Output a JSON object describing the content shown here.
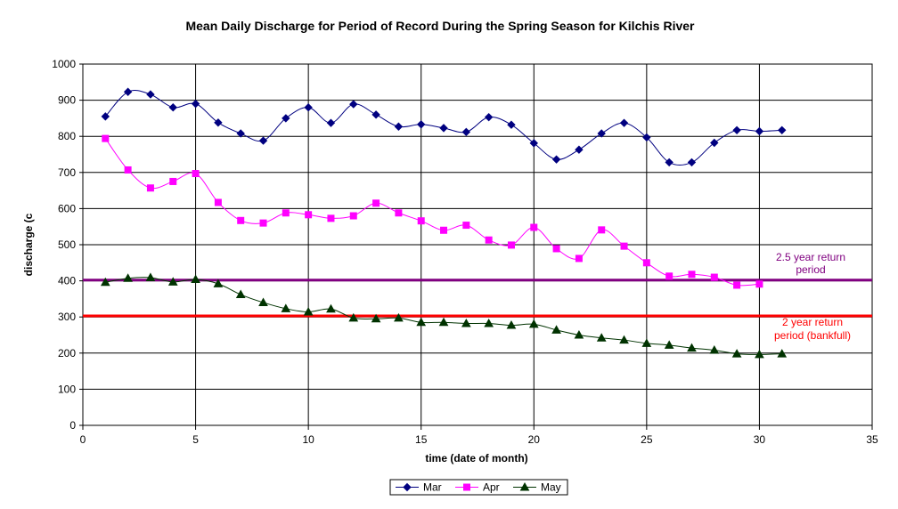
{
  "chart_data": {
    "type": "line",
    "title": "Mean Daily Discharge for Period of Record During the Spring Season for Kilchis River",
    "xlabel": "time (date of month)",
    "ylabel": "discharge (c",
    "xlim": [
      0,
      35
    ],
    "ylim": [
      0,
      1000
    ],
    "xticks": [
      "0",
      "5",
      "10",
      "15",
      "20",
      "25",
      "30",
      "35"
    ],
    "yticks": [
      "0",
      "100",
      "200",
      "300",
      "400",
      "500",
      "600",
      "700",
      "800",
      "900",
      "1000"
    ],
    "grid": true,
    "legend_position": "bottom",
    "series": [
      {
        "name": "Mar",
        "color": "#000080",
        "marker": "diamond",
        "x": [
          1,
          2,
          3,
          4,
          5,
          6,
          7,
          8,
          9,
          10,
          11,
          12,
          13,
          14,
          15,
          16,
          17,
          18,
          19,
          20,
          21,
          22,
          23,
          24,
          25,
          26,
          27,
          28,
          29,
          30,
          31
        ],
        "values": [
          855,
          923,
          916,
          880,
          890,
          838,
          808,
          788,
          850,
          880,
          837,
          889,
          860,
          827,
          833,
          823,
          812,
          853,
          832,
          781,
          736,
          763,
          808,
          837,
          797,
          728,
          728,
          782,
          817,
          814,
          817
        ]
      },
      {
        "name": "Apr",
        "color": "#ff00ff",
        "marker": "square",
        "x": [
          1,
          2,
          3,
          4,
          5,
          6,
          7,
          8,
          9,
          10,
          11,
          12,
          13,
          14,
          15,
          16,
          17,
          18,
          19,
          20,
          21,
          22,
          23,
          24,
          25,
          26,
          27,
          28,
          29,
          30
        ],
        "values": [
          794,
          707,
          657,
          675,
          697,
          617,
          567,
          560,
          588,
          583,
          573,
          580,
          615,
          588,
          566,
          540,
          554,
          513,
          499,
          548,
          489,
          462,
          541,
          496,
          450,
          413,
          418,
          410,
          388,
          391
        ]
      },
      {
        "name": "May",
        "color": "#003300",
        "marker": "triangle",
        "x": [
          1,
          2,
          3,
          4,
          5,
          6,
          7,
          8,
          9,
          10,
          11,
          12,
          13,
          14,
          15,
          16,
          17,
          18,
          19,
          20,
          21,
          22,
          23,
          24,
          25,
          26,
          27,
          28,
          29,
          30,
          31
        ],
        "values": [
          396,
          407,
          409,
          397,
          404,
          392,
          362,
          340,
          323,
          314,
          322,
          297,
          295,
          297,
          285,
          285,
          282,
          282,
          277,
          280,
          264,
          250,
          242,
          236,
          227,
          222,
          214,
          208,
          198,
          196,
          198
        ]
      }
    ],
    "reference_lines": [
      {
        "y": 402,
        "color": "#800080",
        "label_line1": "2.5 year return",
        "label_line2": "period",
        "label_color": "#800080"
      },
      {
        "y": 303,
        "color": "#ff0000",
        "label_line1": "2 year return",
        "label_line2": "period (bankfull)",
        "label_color": "#ff0000"
      }
    ]
  }
}
